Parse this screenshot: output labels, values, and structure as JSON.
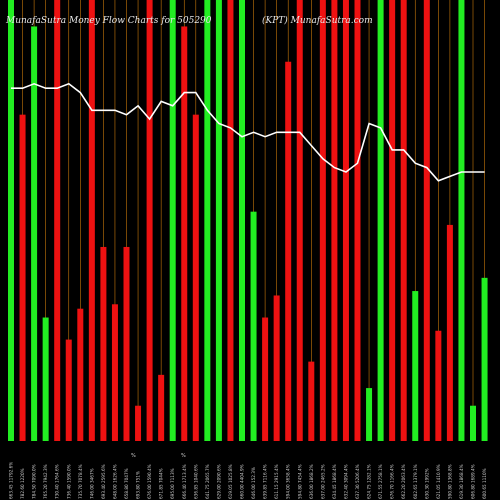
{
  "header": {
    "left": "MunafaSutra  Money Flow  Charts for 505290",
    "right": "(KPT) MunafaSutra.com"
  },
  "mid_marks": [
    "%",
    "%"
  ],
  "colors": {
    "up": "#22ee22",
    "down": "#ee1111",
    "line": "#ffffff",
    "grid": "#c8780a",
    "bg": "#000000"
  },
  "chart_data": {
    "type": "bar",
    "title": "MunafaSutra  Money Flow  Charts for 505290",
    "categories": [
      "663.45 11792.6%",
      "782.60 1220%",
      "784.50 7090.0%",
      "765.20 7942.3%",
      "730.40 1764.6%",
      "736.40 1590.0%",
      "735.70 7078.4%",
      "746.00 3467%",
      "693.40 2595.6%",
      "648.00 1626.4%",
      "658.80 7047%",
      "693.80 751%",
      "676.00 1590.4%",
      "671.85 7044%",
      "695.00 7113%",
      "666.40 1713.4%",
      "636.85 1040.6%",
      "641.75 2065.7%",
      "629.00 2090.6%",
      "619.05 1025.8%",
      "660.00 4404.9%",
      "646.00 152.3%",
      "639.85 7116.4%",
      "611.15 2915.4%",
      "594.00 3658.4%",
      "594.80 7454.4%",
      "636.00 1868.2%",
      "637.00 2465.2%",
      "634.45 1868.4%",
      "632.40 3094.4%",
      "637.30 5206.4%",
      "624.75 1282.1%",
      "671.55 2758.1%",
      "676.70 1166.4%",
      "662.20 2063.4%",
      "602.65 1379.1%",
      "630.30 1992%",
      "621.05 1410.9%",
      "590.80 1368.8%",
      "619.30 1868.4%",
      "606.80 1689.4%",
      "600.65 1110%"
    ],
    "series": [
      {
        "values": [
          100,
          74,
          94,
          28,
          100,
          23,
          30,
          100,
          44,
          31,
          44,
          8,
          100,
          15,
          100,
          94,
          74,
          100,
          100,
          100,
          100,
          52,
          28,
          33,
          86,
          100,
          18,
          100,
          100,
          100,
          100,
          12,
          100,
          100,
          100,
          34,
          100,
          25,
          49,
          100,
          8,
          37
        ]
      },
      {
        "values": [
          80,
          80,
          81,
          80,
          80,
          81,
          79,
          75,
          75,
          75,
          74,
          76,
          73,
          77,
          76,
          79,
          79,
          75,
          72,
          71,
          69,
          70,
          69,
          70,
          70,
          70,
          67,
          64,
          62,
          61,
          63,
          72,
          71,
          66,
          66,
          63,
          62,
          59,
          60,
          61,
          61,
          61
        ]
      }
    ],
    "bar_colors": [
      "up",
      "down",
      "up",
      "up",
      "down",
      "down",
      "down",
      "down",
      "down",
      "down",
      "down",
      "down",
      "down",
      "down",
      "up",
      "down",
      "down",
      "up",
      "up",
      "down",
      "up",
      "up",
      "down",
      "down",
      "down",
      "down",
      "down",
      "down",
      "down",
      "down",
      "down",
      "up",
      "up",
      "down",
      "down",
      "up",
      "down",
      "down",
      "down",
      "up",
      "up",
      "up"
    ],
    "ylim": [
      0,
      100
    ],
    "grid": true
  }
}
